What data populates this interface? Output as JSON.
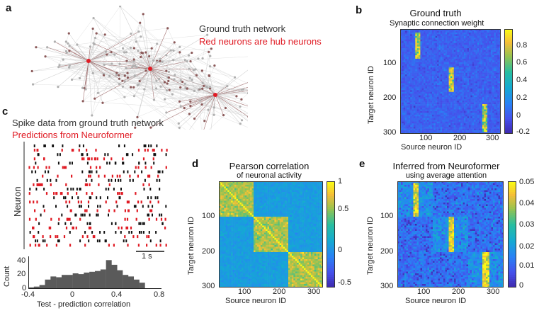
{
  "panels": {
    "a": {
      "letter": "a",
      "legend_line1": "Ground truth network",
      "legend_line2": "Red neurons are hub neurons"
    },
    "b": {
      "letter": "b",
      "title": "Ground truth",
      "subtitle": "Synaptic connection weight",
      "xlabel": "Source neuron ID",
      "ylabel": "Target neuron ID",
      "xticks": [
        "100",
        "200",
        "300"
      ],
      "yticks": [
        "100",
        "200",
        "300"
      ],
      "cbar_ticks": [
        "0.8",
        "0.6",
        "0.4",
        "0.2",
        "0",
        "-0.2"
      ]
    },
    "c": {
      "letter": "c",
      "legend_line1": "Spike data from ground truth network",
      "legend_line2": "Predictions from Neuroformer",
      "ylabel": "Neuron",
      "scalebar": "1 s",
      "hist_ylabel": "Count",
      "hist_xlabel": "Test - prediction correlation",
      "hist_xticks": [
        "-0.4",
        "0",
        "0.4",
        "0.8"
      ],
      "hist_yticks": [
        "40",
        "20",
        "0"
      ]
    },
    "d": {
      "letter": "d",
      "title": "Pearson correlation",
      "subtitle": "of neuronal activity",
      "xlabel": "Source neuron ID",
      "ylabel": "Target neuron ID",
      "xticks": [
        "100",
        "200",
        "300"
      ],
      "yticks": [
        "100",
        "200",
        "300"
      ],
      "cbar_ticks": [
        "1",
        "0.5",
        "0",
        "-0.5"
      ]
    },
    "e": {
      "letter": "e",
      "title": "Inferred from Neuroformer",
      "subtitle": "using average attention",
      "xlabel": "Source neuron ID",
      "ylabel": "Target neuron ID",
      "xticks": [
        "100",
        "200",
        "300"
      ],
      "yticks": [
        "100",
        "200",
        "300"
      ],
      "cbar_ticks": [
        "0.05",
        "0.04",
        "0.03",
        "0.02",
        "0.01",
        "0"
      ]
    }
  },
  "colors": {
    "hub": "#e01b24",
    "node": "#b0b0b0",
    "edge": "#c8c8c8",
    "spike_truth": "#111111",
    "spike_pred": "#e01b24",
    "hist": "#5a5a5a"
  },
  "chart_data": [
    {
      "type": "histogram",
      "panel": "c",
      "xlabel": "Test - prediction correlation",
      "ylabel": "Count",
      "xlim": [
        -0.4,
        0.8
      ],
      "ylim": [
        0,
        40
      ],
      "bin_edges": [
        -0.4,
        -0.35,
        -0.3,
        -0.25,
        -0.2,
        -0.15,
        -0.1,
        -0.05,
        0,
        0.05,
        0.1,
        0.15,
        0.2,
        0.25,
        0.3,
        0.35,
        0.4,
        0.45,
        0.5,
        0.55,
        0.6,
        0.65,
        0.7
      ],
      "counts": [
        2,
        3,
        5,
        12,
        16,
        15,
        18,
        18,
        20,
        19,
        21,
        22,
        23,
        25,
        37,
        31,
        24,
        18,
        16,
        12,
        8,
        0
      ]
    },
    {
      "type": "heatmap",
      "panel": "b",
      "title": "Ground truth",
      "xlabel": "Source neuron ID",
      "ylabel": "Target neuron ID",
      "xlim": [
        0,
        300
      ],
      "ylim": [
        0,
        300
      ],
      "clim": [
        -0.2,
        1.0
      ],
      "colormap": "parula"
    },
    {
      "type": "heatmap",
      "panel": "d",
      "title": "Pearson correlation",
      "xlabel": "Source neuron ID",
      "ylabel": "Target neuron ID",
      "xlim": [
        0,
        300
      ],
      "ylim": [
        0,
        300
      ],
      "clim": [
        -0.5,
        1.0
      ],
      "colormap": "parula"
    },
    {
      "type": "heatmap",
      "panel": "e",
      "title": "Inferred from Neuroformer",
      "xlabel": "Source neuron ID",
      "ylabel": "Target neuron ID",
      "xlim": [
        0,
        300
      ],
      "ylim": [
        0,
        300
      ],
      "clim": [
        0,
        0.05
      ],
      "colormap": "parula"
    }
  ]
}
